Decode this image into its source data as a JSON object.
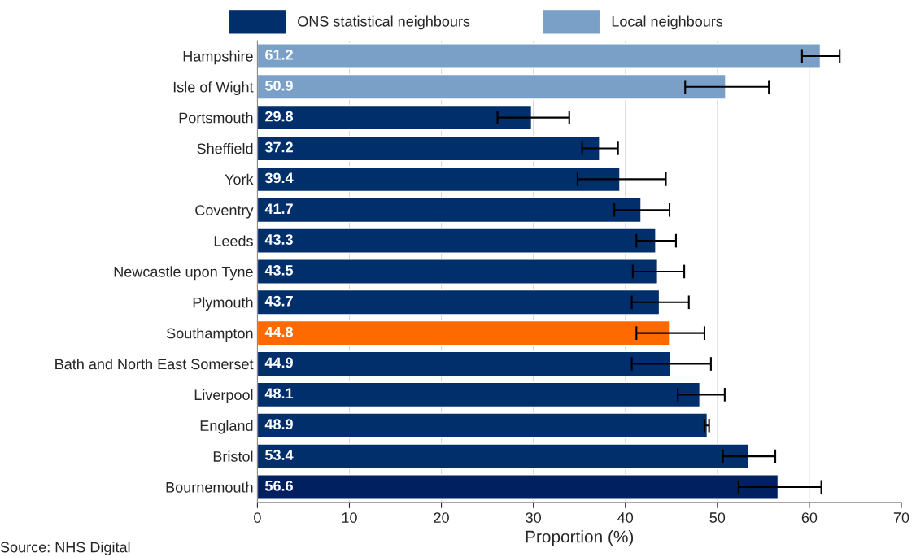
{
  "chart_data": {
    "type": "bar",
    "orientation": "horizontal",
    "xlabel": "Proportion (%)",
    "categories": [
      "Hampshire",
      "Isle of Wight",
      "Portsmouth",
      "Sheffield",
      "York",
      "Coventry",
      "Leeds",
      "Newcastle upon Tyne",
      "Plymouth",
      "Southampton",
      "Bath and North East Somerset",
      "Liverpool",
      "England",
      "Bristol",
      "Bournemouth"
    ],
    "series": [
      {
        "name": "ONS statistical neighbours",
        "color": "#002f6c",
        "values": [
          null,
          null,
          29.8,
          37.2,
          39.4,
          41.7,
          43.3,
          43.5,
          43.7,
          44.8,
          44.9,
          48.1,
          48.9,
          53.4,
          56.6
        ],
        "colors": [
          "#002f6c",
          "#002f6c",
          "#002f6c",
          "#002f6c",
          "#002f6c",
          "#002f6c",
          "#002f6c",
          "#002f6c",
          "#002f6c",
          "#ff6a00",
          "#002f6c",
          "#002f6c",
          "#002f6c",
          "#002f6c",
          "#002060"
        ],
        "errors": [
          null,
          null,
          [
            26.1,
            33.9
          ],
          [
            35.3,
            39.2
          ],
          [
            34.8,
            44.4
          ],
          [
            38.8,
            44.8
          ],
          [
            41.2,
            45.5
          ],
          [
            40.8,
            46.4
          ],
          [
            40.7,
            46.9
          ],
          [
            41.2,
            48.6
          ],
          [
            40.7,
            49.3
          ],
          [
            45.7,
            50.8
          ],
          [
            48.6,
            49.1
          ],
          [
            50.6,
            56.3
          ],
          [
            52.3,
            61.3
          ]
        ]
      },
      {
        "name": "Local neighbours",
        "color": "#7ba0c8",
        "values": [
          61.2,
          50.9,
          null,
          null,
          null,
          null,
          null,
          null,
          null,
          null,
          null,
          null,
          null,
          null,
          null
        ],
        "errors": [
          [
            59.2,
            63.3
          ],
          [
            46.5,
            55.6
          ],
          null,
          null,
          null,
          null,
          null,
          null,
          null,
          null,
          null,
          null,
          null,
          null,
          null
        ]
      }
    ],
    "xlim": [
      0,
      70
    ],
    "xticks": [
      0,
      10,
      20,
      30,
      40,
      50,
      60,
      70
    ],
    "grid": "x",
    "legend": "top",
    "data_labels": true,
    "annotations": [
      "Source: NHS Digital"
    ]
  }
}
